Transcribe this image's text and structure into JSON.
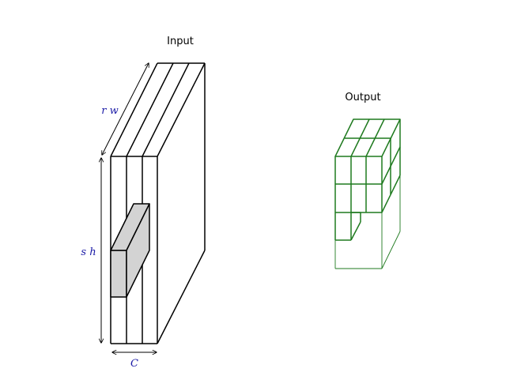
{
  "input_block": {
    "title": "Input",
    "stroke_color": "#000000",
    "patch_fill": "#d3d3d3"
  },
  "output_block": {
    "title": "Output",
    "stroke_color": "#1f7a1f"
  },
  "dimension_labels": {
    "color": "#1a1aa6",
    "width_label": "r w",
    "height_label": "s h",
    "channels_label": "C"
  }
}
